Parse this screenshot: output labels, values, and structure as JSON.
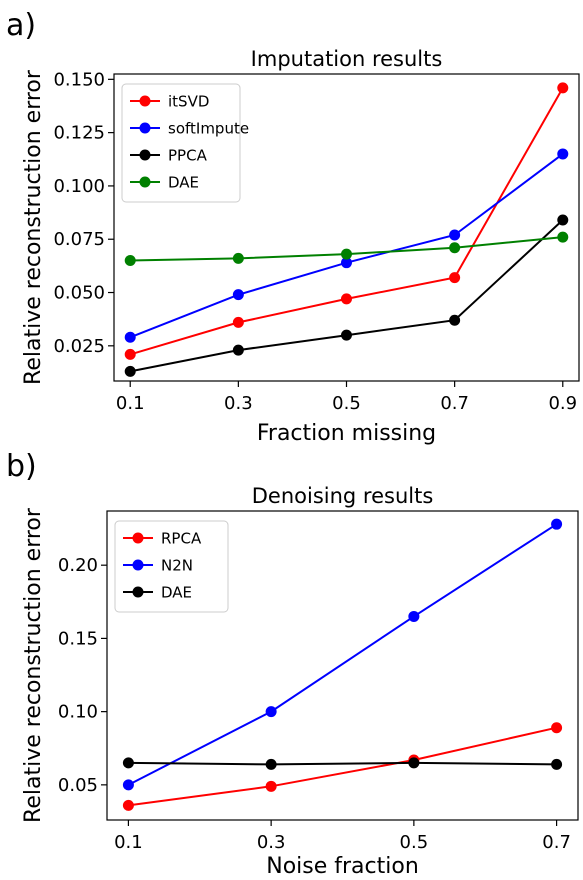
{
  "chart_data": [
    {
      "panel_label": "a)",
      "type": "line",
      "title": "Imputation results",
      "xlabel": "Fraction missing",
      "ylabel": "Relative reconstruction error",
      "x": [
        0.1,
        0.3,
        0.5,
        0.7,
        0.9
      ],
      "xticks": [
        "0.1",
        "0.3",
        "0.5",
        "0.7",
        "0.9"
      ],
      "yticks": [
        "0.025",
        "0.050",
        "0.075",
        "0.100",
        "0.125",
        "0.150"
      ],
      "xlim": [
        0.07,
        0.93
      ],
      "ylim": [
        0.0085,
        0.1525
      ],
      "grid": false,
      "legend": "top-left",
      "series": [
        {
          "name": "itSVD",
          "color": "#ff0000",
          "values": [
            0.021,
            0.036,
            0.047,
            0.057,
            0.146
          ]
        },
        {
          "name": "softImpute",
          "color": "#0000ff",
          "values": [
            0.029,
            0.049,
            0.064,
            0.077,
            0.115
          ]
        },
        {
          "name": "PPCA",
          "color": "#000000",
          "values": [
            0.013,
            0.023,
            0.03,
            0.037,
            0.084
          ]
        },
        {
          "name": "DAE",
          "color": "#008000",
          "values": [
            0.065,
            0.066,
            0.068,
            0.071,
            0.076
          ]
        }
      ]
    },
    {
      "panel_label": "b)",
      "type": "line",
      "title": "Denoising results",
      "xlabel": "Noise fraction",
      "ylabel": "Relative reconstruction error",
      "x": [
        0.1,
        0.3,
        0.5,
        0.7
      ],
      "xticks": [
        "0.1",
        "0.3",
        "0.5",
        "0.7"
      ],
      "yticks": [
        "0.05",
        "0.10",
        "0.15",
        "0.20"
      ],
      "xlim": [
        0.07,
        0.73
      ],
      "ylim": [
        0.026,
        0.237
      ],
      "grid": false,
      "legend": "top-left",
      "series": [
        {
          "name": "RPCA",
          "color": "#ff0000",
          "values": [
            0.036,
            0.049,
            0.067,
            0.089
          ]
        },
        {
          "name": "N2N",
          "color": "#0000ff",
          "values": [
            0.05,
            0.1,
            0.165,
            0.228
          ]
        },
        {
          "name": "DAE",
          "color": "#000000",
          "values": [
            0.065,
            0.064,
            0.065,
            0.064
          ]
        }
      ]
    }
  ]
}
